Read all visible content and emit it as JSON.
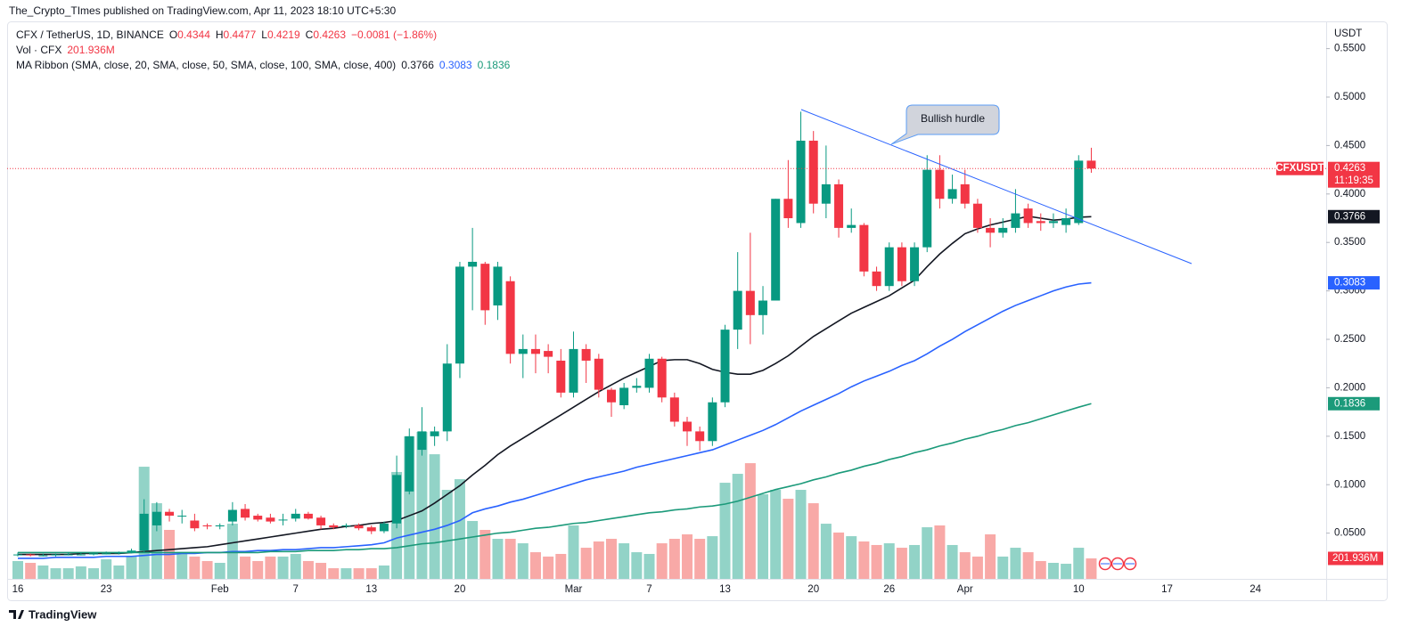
{
  "chart_data": {
    "type": "candlestick",
    "published": "The_Crypto_TImes published on TradingView.com, Apr 11, 2023 18:10 UTC+5:30",
    "header": {
      "symbol": "CFX / TetherUS, 1D, BINANCE",
      "o": "O",
      "h": "H",
      "l": "L",
      "c": "C",
      "change": "−0.0081 (−1.86%)",
      "vol_label": "Vol · CFX",
      "ma_label": "MA Ribbon (SMA, close, 20, SMA, close, 50, SMA, close, 100, SMA, close, 400)"
    },
    "axis_title": "USDT",
    "symbol_tag": "CFXUSDT",
    "countdown": "11:19:35",
    "annotation": "Bullish hurdle",
    "brand": "TradingView",
    "up_color": "#089981",
    "down_color": "#f23645",
    "up_volume_color": "#92d3c7",
    "down_volume_color": "#f8a9a7",
    "categories": [
      "16",
      null,
      null,
      null,
      null,
      null,
      null,
      "23",
      null,
      null,
      null,
      null,
      null,
      null,
      null,
      null,
      "Feb",
      null,
      null,
      null,
      null,
      null,
      "7",
      null,
      null,
      null,
      null,
      null,
      "13",
      null,
      null,
      null,
      null,
      null,
      null,
      "20",
      null,
      null,
      null,
      null,
      null,
      null,
      null,
      null,
      "Mar",
      null,
      null,
      null,
      null,
      null,
      "7",
      null,
      null,
      null,
      null,
      null,
      "13",
      null,
      null,
      null,
      null,
      null,
      null,
      "20",
      null,
      null,
      null,
      null,
      null,
      "26",
      null,
      null,
      null,
      null,
      null,
      "Apr",
      null,
      null,
      null,
      null,
      null,
      null,
      null,
      null,
      "10",
      null,
      null,
      null,
      null,
      null,
      null,
      "17",
      null,
      null,
      null,
      null,
      null,
      null,
      "24",
      null
    ],
    "open": [
      0.028,
      0.028,
      0.027,
      0.027,
      0.028,
      0.028,
      0.028,
      0.029,
      0.029,
      0.03,
      0.032,
      0.058,
      0.072,
      0.068,
      0.063,
      0.058,
      0.057,
      0.062,
      0.075,
      0.068,
      0.066,
      0.064,
      0.065,
      0.07,
      0.066,
      0.058,
      0.057,
      0.058,
      0.056,
      0.052,
      0.06,
      0.093,
      0.136,
      0.15,
      0.155,
      0.225,
      0.325,
      0.328,
      0.285,
      0.31,
      0.235,
      0.24,
      0.238,
      0.228,
      0.195,
      0.24,
      0.23,
      0.198,
      0.182,
      0.2,
      0.2,
      0.23,
      0.19,
      0.165,
      0.155,
      0.145,
      0.185,
      0.26,
      0.3,
      0.275,
      0.29,
      0.395,
      0.37,
      0.455,
      0.39,
      0.41,
      0.365,
      0.368,
      0.32,
      0.305,
      0.345,
      0.31,
      0.345,
      0.425,
      0.395,
      0.41,
      0.39,
      0.365,
      0.36,
      0.365,
      0.385,
      0.372,
      0.37,
      0.368,
      0.37,
      0.4344,
      null,
      null,
      null,
      null,
      null,
      null,
      null,
      null,
      null,
      null,
      null,
      null,
      null,
      null
    ],
    "high": [
      0.03,
      0.029,
      0.029,
      0.029,
      0.03,
      0.03,
      0.03,
      0.031,
      0.031,
      0.034,
      0.085,
      0.082,
      0.075,
      0.074,
      0.07,
      0.06,
      0.06,
      0.082,
      0.08,
      0.07,
      0.07,
      0.07,
      0.075,
      0.072,
      0.068,
      0.06,
      0.06,
      0.06,
      0.058,
      0.062,
      0.13,
      0.158,
      0.18,
      0.16,
      0.245,
      0.33,
      0.365,
      0.33,
      0.33,
      0.315,
      0.255,
      0.255,
      0.245,
      0.24,
      0.258,
      0.245,
      0.235,
      0.2,
      0.205,
      0.21,
      0.235,
      0.232,
      0.195,
      0.17,
      0.16,
      0.19,
      0.265,
      0.34,
      0.36,
      0.305,
      0.395,
      0.435,
      0.485,
      0.465,
      0.45,
      0.415,
      0.385,
      0.37,
      0.325,
      0.35,
      0.35,
      0.35,
      0.44,
      0.44,
      0.42,
      0.425,
      0.395,
      0.375,
      0.375,
      0.405,
      0.39,
      0.38,
      0.38,
      0.385,
      0.44,
      0.4477,
      null,
      null,
      null,
      null,
      null,
      null,
      null,
      null,
      null,
      null,
      null,
      null,
      null,
      null
    ],
    "low": [
      0.026,
      0.026,
      0.026,
      0.026,
      0.027,
      0.027,
      0.027,
      0.028,
      0.028,
      0.029,
      0.03,
      0.052,
      0.062,
      0.06,
      0.052,
      0.054,
      0.054,
      0.058,
      0.063,
      0.062,
      0.06,
      0.058,
      0.062,
      0.064,
      0.054,
      0.054,
      0.055,
      0.053,
      0.049,
      0.05,
      0.055,
      0.09,
      0.13,
      0.14,
      0.145,
      0.21,
      0.28,
      0.265,
      0.27,
      0.225,
      0.21,
      0.215,
      0.215,
      0.19,
      0.19,
      0.205,
      0.19,
      0.17,
      0.178,
      0.195,
      0.195,
      0.185,
      0.16,
      0.14,
      0.135,
      0.14,
      0.18,
      0.24,
      0.245,
      0.255,
      0.29,
      0.365,
      0.365,
      0.38,
      0.375,
      0.355,
      0.36,
      0.315,
      0.3,
      0.3,
      0.305,
      0.305,
      0.34,
      0.385,
      0.39,
      0.385,
      0.36,
      0.345,
      0.355,
      0.36,
      0.365,
      0.362,
      0.365,
      0.36,
      0.368,
      0.4219,
      null,
      null,
      null,
      null,
      null,
      null,
      null,
      null,
      null,
      null,
      null,
      null,
      null,
      null
    ],
    "close": [
      0.028,
      0.027,
      0.027,
      0.028,
      0.028,
      0.028,
      0.029,
      0.029,
      0.03,
      0.032,
      0.07,
      0.072,
      0.068,
      0.068,
      0.055,
      0.057,
      0.058,
      0.074,
      0.066,
      0.064,
      0.062,
      0.064,
      0.07,
      0.065,
      0.058,
      0.056,
      0.058,
      0.055,
      0.052,
      0.06,
      0.11,
      0.15,
      0.155,
      0.155,
      0.225,
      0.325,
      0.33,
      0.28,
      0.325,
      0.235,
      0.24,
      0.235,
      0.232,
      0.195,
      0.24,
      0.228,
      0.198,
      0.185,
      0.2,
      0.202,
      0.23,
      0.19,
      0.165,
      0.155,
      0.145,
      0.185,
      0.26,
      0.3,
      0.275,
      0.29,
      0.395,
      0.375,
      0.455,
      0.39,
      0.41,
      0.365,
      0.368,
      0.32,
      0.305,
      0.345,
      0.31,
      0.345,
      0.425,
      0.395,
      0.405,
      0.39,
      0.365,
      0.36,
      0.365,
      0.38,
      0.37,
      0.37,
      0.372,
      0.375,
      0.4344,
      0.4263,
      null,
      null,
      null,
      null,
      null,
      null,
      null,
      null,
      null,
      null,
      null,
      null,
      null,
      null
    ],
    "volume": {
      "values": [
        176,
        158,
        132,
        105,
        105,
        123,
        105,
        193,
        132,
        220,
        1106,
        746,
        483,
        263,
        220,
        176,
        158,
        544,
        220,
        176,
        220,
        220,
        246,
        176,
        158,
        105,
        105,
        105,
        105,
        132,
        1054,
        1405,
        1449,
        1229,
        878,
        983,
        571,
        483,
        395,
        395,
        351,
        263,
        220,
        246,
        527,
        307,
        369,
        395,
        351,
        263,
        246,
        351,
        395,
        439,
        395,
        421,
        948,
        1036,
        1141,
        834,
        878,
        790,
        878,
        746,
        544,
        457,
        421,
        369,
        334,
        351,
        307,
        334,
        509,
        527,
        334,
        263,
        220,
        439,
        220,
        307,
        263,
        176,
        158,
        149,
        307,
        201.936,
        null,
        null,
        null,
        null,
        null,
        null,
        null,
        null,
        null,
        null,
        null,
        null,
        null,
        null
      ],
      "value_labels": [
        null,
        null,
        null,
        null,
        null,
        null,
        null,
        null,
        null,
        null,
        null,
        null,
        null,
        null,
        null,
        null,
        null,
        null,
        null,
        null,
        null,
        null,
        null,
        null,
        null,
        null,
        null,
        null,
        null,
        null,
        null,
        null,
        null,
        null,
        null,
        null,
        null,
        null,
        null,
        null,
        null,
        null,
        null,
        null,
        null,
        null,
        null,
        null,
        null,
        null,
        null,
        null,
        null,
        null,
        null,
        null,
        null,
        null,
        null,
        null,
        null,
        null,
        null,
        null,
        null,
        null,
        null,
        null,
        null,
        null,
        null,
        null,
        null,
        null,
        null,
        null,
        null,
        null,
        null,
        null,
        null,
        null,
        null,
        null,
        null,
        "201.936M",
        null,
        null,
        null,
        null,
        null,
        null,
        null,
        null,
        null,
        null,
        null,
        null,
        null,
        null
      ]
    },
    "series": [
      {
        "color": "#131722",
        "values": [
          0.028,
          0.028,
          0.028,
          0.028,
          0.028,
          0.029,
          0.029,
          0.029,
          0.029,
          0.03,
          0.031,
          0.032,
          0.033,
          0.034,
          0.035,
          0.036,
          0.038,
          0.04,
          0.042,
          0.044,
          0.046,
          0.048,
          0.05,
          0.052,
          0.054,
          0.055,
          0.057,
          0.058,
          0.06,
          0.061,
          0.063,
          0.068,
          0.073,
          0.081,
          0.09,
          0.099,
          0.11,
          0.12,
          0.131,
          0.14,
          0.148,
          0.156,
          0.164,
          0.172,
          0.18,
          0.188,
          0.196,
          0.203,
          0.21,
          0.216,
          0.222,
          0.228,
          0.229,
          0.229,
          0.225,
          0.219,
          0.216,
          0.214,
          0.214,
          0.218,
          0.225,
          0.233,
          0.243,
          0.253,
          0.261,
          0.269,
          0.277,
          0.283,
          0.289,
          0.295,
          0.303,
          0.311,
          0.325,
          0.338,
          0.349,
          0.359,
          0.364,
          0.368,
          0.371,
          0.374,
          0.377,
          0.375,
          0.373,
          0.374,
          0.376,
          0.3766,
          null,
          null,
          null,
          null,
          null,
          null,
          null,
          null,
          null,
          null,
          null,
          null,
          null,
          null
        ]
      },
      {
        "color": "#2962ff",
        "values": [
          0.024,
          0.024,
          0.024,
          0.025,
          0.025,
          0.025,
          0.025,
          0.026,
          0.026,
          0.026,
          0.027,
          0.028,
          0.028,
          0.029,
          0.029,
          0.03,
          0.03,
          0.031,
          0.031,
          0.032,
          0.032,
          0.033,
          0.033,
          0.034,
          0.035,
          0.035,
          0.036,
          0.037,
          0.038,
          0.04,
          0.045,
          0.048,
          0.051,
          0.054,
          0.058,
          0.063,
          0.071,
          0.075,
          0.078,
          0.082,
          0.085,
          0.089,
          0.093,
          0.097,
          0.101,
          0.105,
          0.108,
          0.111,
          0.114,
          0.118,
          0.121,
          0.124,
          0.127,
          0.13,
          0.133,
          0.136,
          0.141,
          0.146,
          0.151,
          0.156,
          0.162,
          0.169,
          0.176,
          0.182,
          0.188,
          0.194,
          0.201,
          0.207,
          0.212,
          0.217,
          0.223,
          0.228,
          0.235,
          0.243,
          0.25,
          0.258,
          0.265,
          0.272,
          0.279,
          0.285,
          0.29,
          0.295,
          0.3,
          0.304,
          0.307,
          0.3083,
          null,
          null,
          null,
          null,
          null,
          null,
          null,
          null,
          null,
          null,
          null,
          null,
          null,
          null
        ]
      },
      {
        "color": "#1b9a7a",
        "values": [
          0.03,
          0.03,
          0.03,
          0.03,
          0.03,
          0.03,
          0.03,
          0.03,
          0.03,
          0.03,
          0.03,
          0.03,
          0.03,
          0.03,
          0.03,
          0.03,
          0.03,
          0.03,
          0.03,
          0.03,
          0.031,
          0.031,
          0.031,
          0.032,
          0.032,
          0.032,
          0.033,
          0.033,
          0.034,
          0.034,
          0.035,
          0.037,
          0.039,
          0.04,
          0.042,
          0.044,
          0.046,
          0.048,
          0.05,
          0.051,
          0.053,
          0.055,
          0.056,
          0.058,
          0.06,
          0.061,
          0.063,
          0.065,
          0.067,
          0.069,
          0.071,
          0.072,
          0.074,
          0.075,
          0.077,
          0.078,
          0.08,
          0.083,
          0.087,
          0.091,
          0.095,
          0.098,
          0.101,
          0.105,
          0.108,
          0.112,
          0.115,
          0.119,
          0.122,
          0.126,
          0.129,
          0.133,
          0.136,
          0.14,
          0.143,
          0.147,
          0.15,
          0.154,
          0.157,
          0.161,
          0.164,
          0.168,
          0.172,
          0.176,
          0.18,
          0.1836,
          null,
          null,
          null,
          null,
          null,
          null,
          null,
          null,
          null,
          null,
          null,
          null,
          null,
          null
        ]
      }
    ],
    "ylim": [
      0.0028,
      0.5818
    ],
    "yticks": [
      {
        "value": 0.05,
        "label": "0.0500"
      },
      {
        "value": 0.1,
        "label": "0.1000"
      },
      {
        "value": 0.15,
        "label": "0.1500"
      },
      {
        "value": 0.2,
        "label": "0.2000"
      },
      {
        "value": 0.25,
        "label": "0.2500"
      },
      {
        "value": 0.3,
        "label": "0.3000"
      },
      {
        "value": 0.35,
        "label": "0.3500"
      },
      {
        "value": 0.4,
        "label": "0.4000"
      },
      {
        "value": 0.45,
        "label": "0.4500"
      },
      {
        "value": 0.5,
        "label": "0.5000"
      },
      {
        "value": 0.55,
        "label": "0.5500"
      }
    ],
    "grid": false
  }
}
